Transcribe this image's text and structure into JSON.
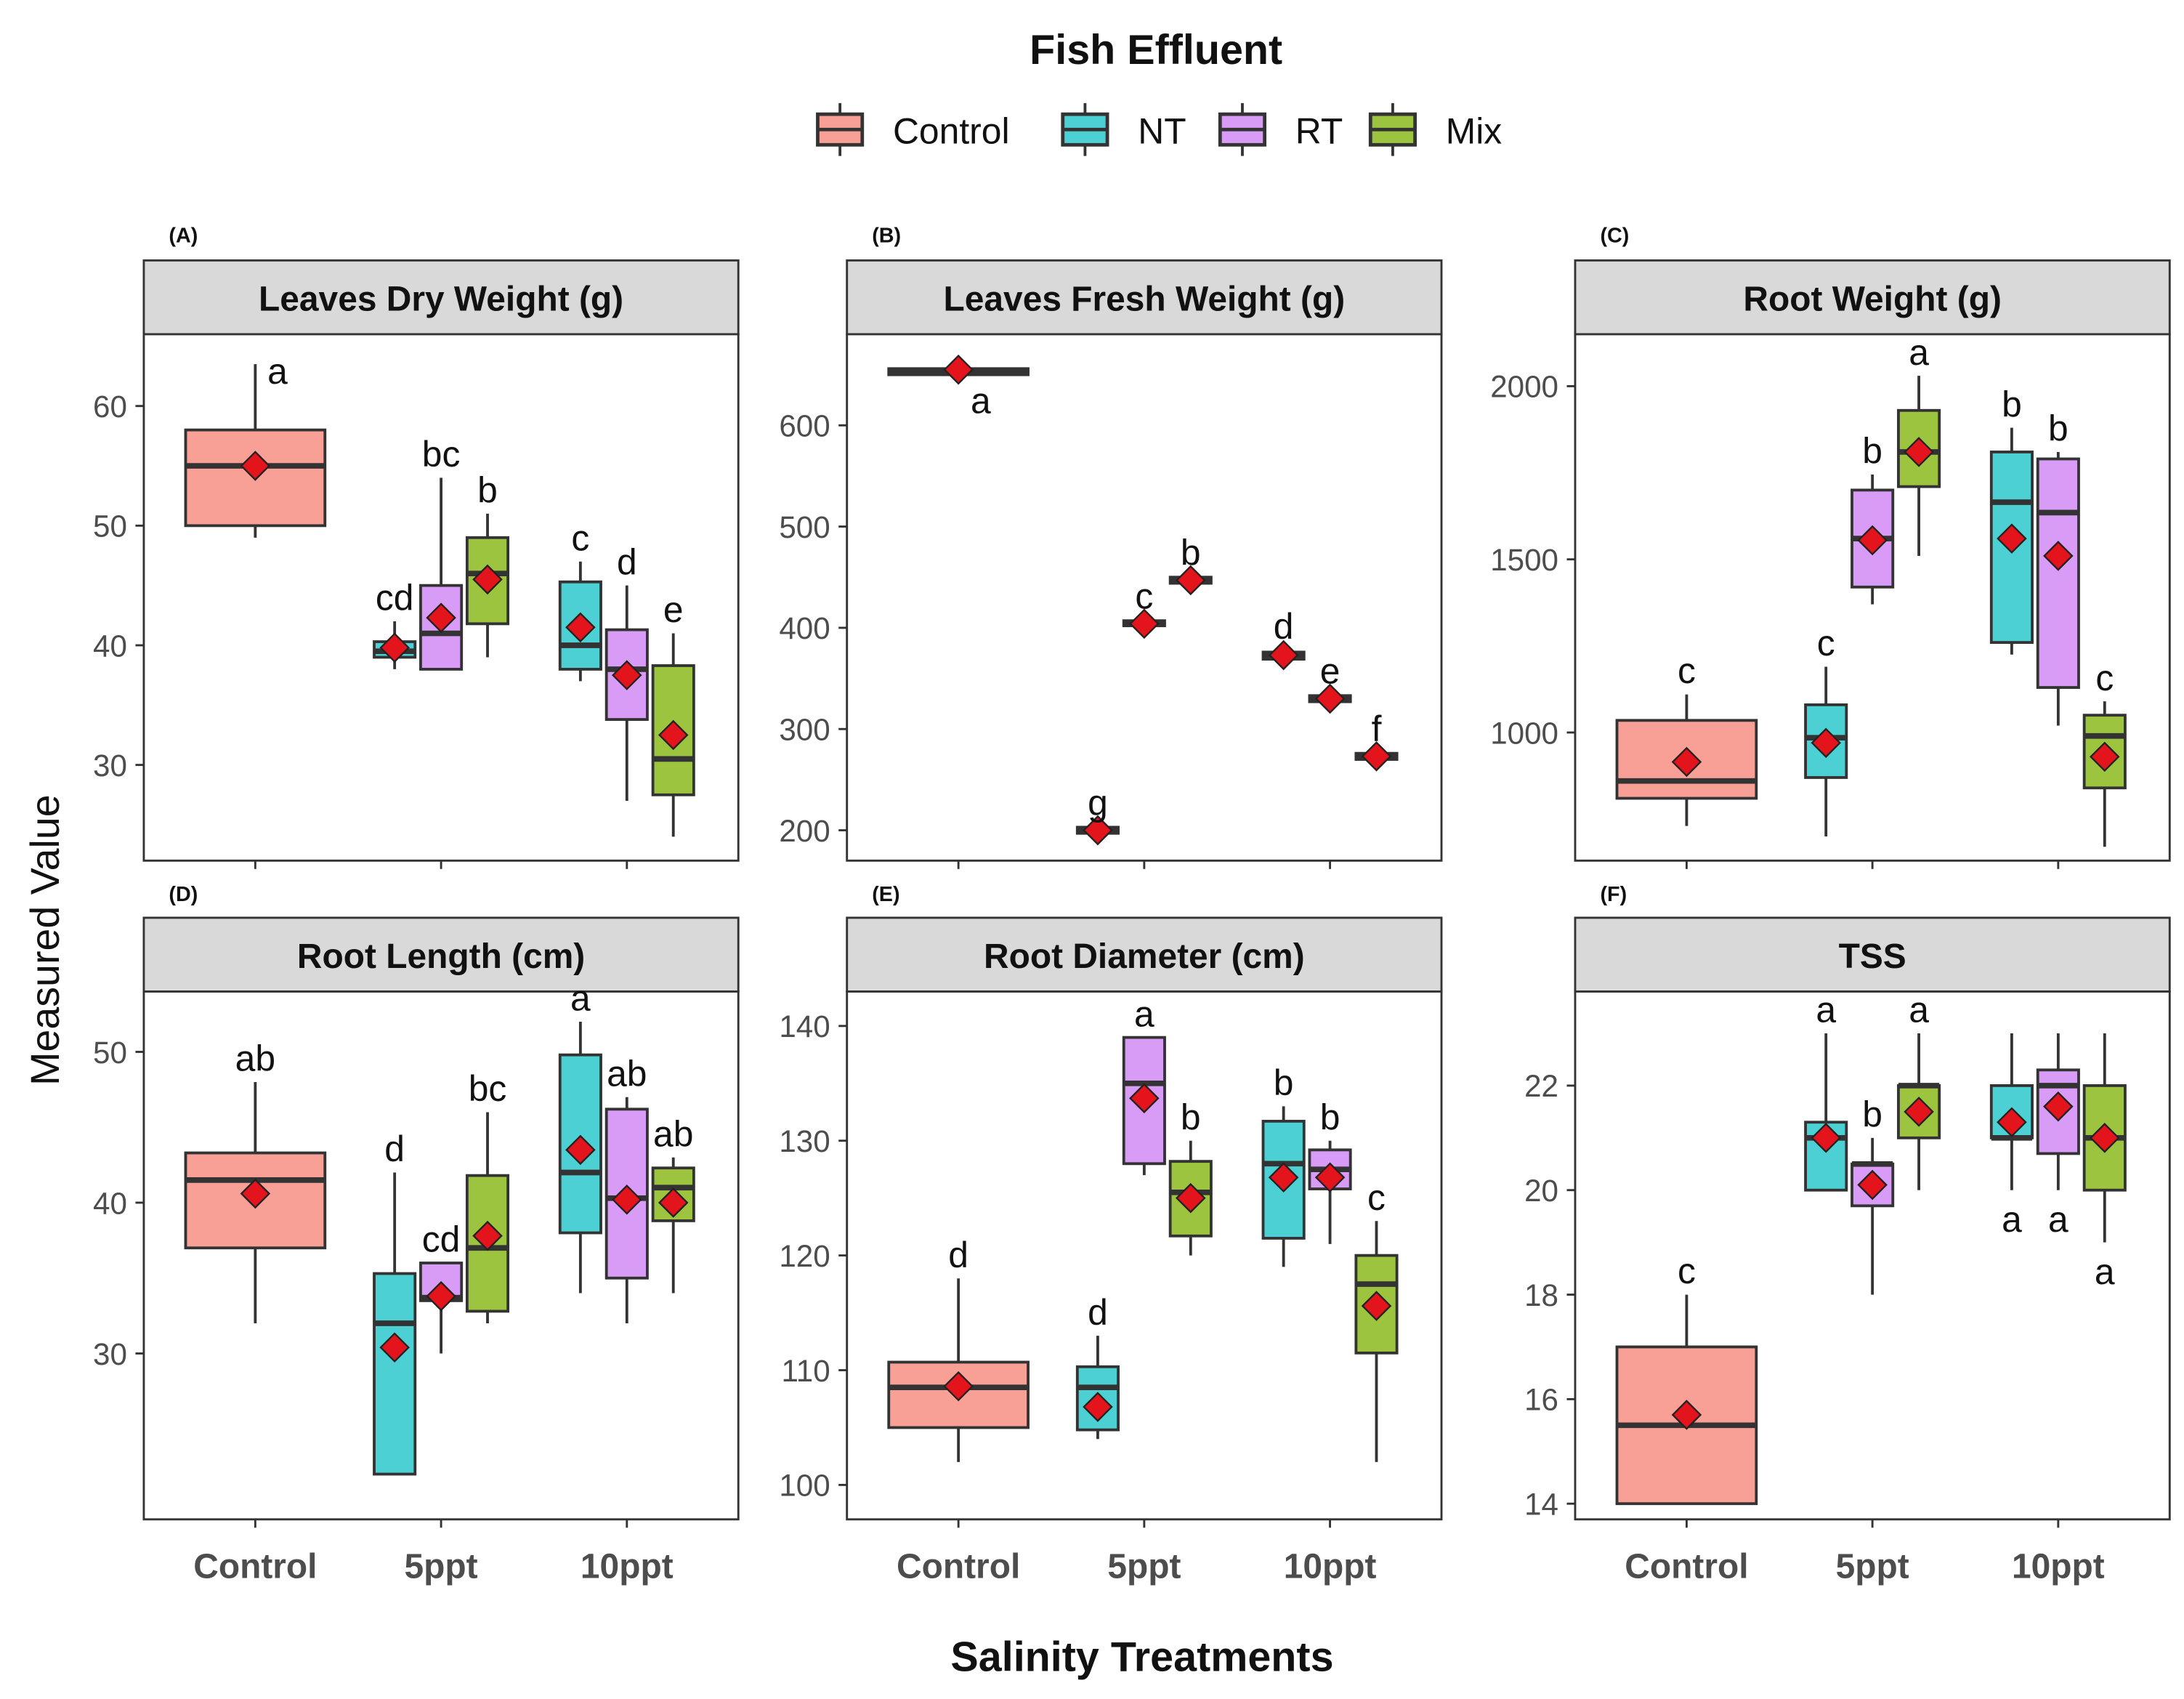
{
  "chart_data": {
    "type": "box",
    "title": "Fish Effluent",
    "xlabel": "Salinity Treatments",
    "ylabel": "Measured Value",
    "categories": [
      "Control",
      "5ppt",
      "10ppt"
    ],
    "legend": {
      "position": "top",
      "items": [
        {
          "name": "Control",
          "color": "#F8A096"
        },
        {
          "name": "NT",
          "color": "#4DD0D3"
        },
        {
          "name": "RT",
          "color": "#D89CF6"
        },
        {
          "name": "Mix",
          "color": "#9CC43E"
        }
      ]
    },
    "mean_marker_color": "#E3141B",
    "panels": [
      {
        "letter": "(A)",
        "title": "Leaves Dry Weight (g)",
        "ylim": [
          22,
          66
        ],
        "yticks": [
          "30",
          "40",
          "50",
          "60"
        ],
        "boxes": [
          {
            "group": "Control",
            "category": "Control",
            "lo": 49,
            "q1": 50,
            "median": 55,
            "q3": 58,
            "hi": 63.5,
            "mean": 55,
            "label": "a",
            "label_pos": "above"
          },
          {
            "group": "NT",
            "category": "5ppt",
            "lo": 38,
            "q1": 39,
            "median": 39.5,
            "q3": 40.3,
            "hi": 42,
            "mean": 39.8,
            "label": "cd",
            "label_pos": "above"
          },
          {
            "group": "RT",
            "category": "5ppt",
            "lo": 38,
            "q1": 38,
            "median": 41,
            "q3": 45,
            "hi": 54,
            "mean": 42.3,
            "label": "bc",
            "label_pos": "above"
          },
          {
            "group": "Mix",
            "category": "5ppt",
            "lo": 39,
            "q1": 41.8,
            "median": 46,
            "q3": 49,
            "hi": 51,
            "mean": 45.5,
            "label": "b",
            "label_pos": "above"
          },
          {
            "group": "NT",
            "category": "10ppt",
            "lo": 37,
            "q1": 38,
            "median": 40,
            "q3": 45.3,
            "hi": 47,
            "mean": 41.5,
            "label": "c",
            "label_pos": "above"
          },
          {
            "group": "RT",
            "category": "10ppt",
            "lo": 27,
            "q1": 33.8,
            "median": 38,
            "q3": 41.3,
            "hi": 45,
            "mean": 37.5,
            "label": "d",
            "label_pos": "above"
          },
          {
            "group": "Mix",
            "category": "10ppt",
            "lo": 24,
            "q1": 27.5,
            "median": 30.5,
            "q3": 38.3,
            "hi": 41,
            "mean": 32.5,
            "label": "e",
            "label_pos": "above"
          }
        ]
      },
      {
        "letter": "(B)",
        "title": "Leaves Fresh Weight (g)",
        "ylim": [
          170,
          690
        ],
        "yticks": [
          "200",
          "300",
          "400",
          "500",
          "600"
        ],
        "boxes": [
          {
            "group": "Control",
            "category": "Control",
            "lo": 648,
            "q1": 650,
            "median": 653,
            "q3": 656,
            "hi": 658,
            "mean": 655,
            "label": "a",
            "label_pos": "below"
          },
          {
            "group": "NT",
            "category": "5ppt",
            "lo": 196,
            "q1": 197,
            "median": 200,
            "q3": 203,
            "hi": 204,
            "mean": 200,
            "label": "g",
            "label_pos": "above"
          },
          {
            "group": "RT",
            "category": "5ppt",
            "lo": 401,
            "q1": 402,
            "median": 405,
            "q3": 407,
            "hi": 408,
            "mean": 404,
            "label": "c",
            "label_pos": "above"
          },
          {
            "group": "Mix",
            "category": "5ppt",
            "lo": 443,
            "q1": 444,
            "median": 447,
            "q3": 450,
            "hi": 451,
            "mean": 447,
            "label": "b",
            "label_pos": "above"
          },
          {
            "group": "NT",
            "category": "10ppt",
            "lo": 368,
            "q1": 369,
            "median": 373,
            "q3": 376,
            "hi": 378,
            "mean": 373,
            "label": "d",
            "label_pos": "above"
          },
          {
            "group": "RT",
            "category": "10ppt",
            "lo": 326,
            "q1": 327,
            "median": 330,
            "q3": 333,
            "hi": 334,
            "mean": 330,
            "label": "e",
            "label_pos": "above"
          },
          {
            "group": "Mix",
            "category": "10ppt",
            "lo": 269,
            "q1": 270,
            "median": 273,
            "q3": 276,
            "hi": 277,
            "mean": 273,
            "label": "f",
            "label_pos": "above"
          }
        ]
      },
      {
        "letter": "(C)",
        "title": "Root Weight (g)",
        "ylim": [
          630,
          2150
        ],
        "yticks": [
          "1000",
          "1500",
          "2000"
        ],
        "boxes": [
          {
            "group": "Control",
            "category": "Control",
            "lo": 730,
            "q1": 810,
            "median": 860,
            "q3": 1035,
            "hi": 1110,
            "mean": 915,
            "label": "c",
            "label_pos": "above"
          },
          {
            "group": "NT",
            "category": "5ppt",
            "lo": 700,
            "q1": 870,
            "median": 985,
            "q3": 1080,
            "hi": 1190,
            "mean": 970,
            "label": "c",
            "label_pos": "above"
          },
          {
            "group": "RT",
            "category": "5ppt",
            "lo": 1370,
            "q1": 1420,
            "median": 1560,
            "q3": 1700,
            "hi": 1745,
            "mean": 1555,
            "label": "b",
            "label_pos": "above"
          },
          {
            "group": "Mix",
            "category": "5ppt",
            "lo": 1510,
            "q1": 1710,
            "median": 1810,
            "q3": 1930,
            "hi": 2030,
            "mean": 1810,
            "label": "a",
            "label_pos": "above"
          },
          {
            "group": "NT",
            "category": "10ppt",
            "lo": 1225,
            "q1": 1260,
            "median": 1665,
            "q3": 1810,
            "hi": 1880,
            "mean": 1560,
            "label": "b",
            "label_pos": "above"
          },
          {
            "group": "RT",
            "category": "10ppt",
            "lo": 1020,
            "q1": 1130,
            "median": 1635,
            "q3": 1790,
            "hi": 1810,
            "mean": 1510,
            "label": "b",
            "label_pos": "above"
          },
          {
            "group": "Mix",
            "category": "10ppt",
            "lo": 670,
            "q1": 840,
            "median": 990,
            "q3": 1050,
            "hi": 1090,
            "mean": 930,
            "label": "c",
            "label_pos": "above"
          }
        ]
      },
      {
        "letter": "(D)",
        "title": "Root Length (cm)",
        "ylim": [
          19,
          54
        ],
        "yticks": [
          "30",
          "40",
          "50"
        ],
        "boxes": [
          {
            "group": "Control",
            "category": "Control",
            "lo": 32,
            "q1": 37,
            "median": 41.5,
            "q3": 43.3,
            "hi": 48,
            "mean": 40.6,
            "label": "ab",
            "label_pos": "above"
          },
          {
            "group": "NT",
            "category": "5ppt",
            "lo": 22,
            "q1": 22,
            "median": 32,
            "q3": 35.3,
            "hi": 42,
            "mean": 30.4,
            "label": "d",
            "label_pos": "above"
          },
          {
            "group": "RT",
            "category": "5ppt",
            "lo": 30,
            "q1": 33.5,
            "median": 33.7,
            "q3": 36,
            "hi": 36,
            "mean": 33.8,
            "label": "cd",
            "label_pos": "above"
          },
          {
            "group": "Mix",
            "category": "5ppt",
            "lo": 32,
            "q1": 32.8,
            "median": 37,
            "q3": 41.8,
            "hi": 46,
            "mean": 37.8,
            "label": "bc",
            "label_pos": "above"
          },
          {
            "group": "NT",
            "category": "10ppt",
            "lo": 34,
            "q1": 38,
            "median": 42,
            "q3": 49.8,
            "hi": 52,
            "mean": 43.5,
            "label": "a",
            "label_pos": "above"
          },
          {
            "group": "RT",
            "category": "10ppt",
            "lo": 32,
            "q1": 35,
            "median": 40.3,
            "q3": 46.2,
            "hi": 47,
            "mean": 40.2,
            "label": "ab",
            "label_pos": "above"
          },
          {
            "group": "Mix",
            "category": "10ppt",
            "lo": 34,
            "q1": 38.8,
            "median": 41,
            "q3": 42.3,
            "hi": 43,
            "mean": 40,
            "label": "ab",
            "label_pos": "above"
          }
        ]
      },
      {
        "letter": "(E)",
        "title": "Root Diameter (cm)",
        "ylim": [
          97,
          143
        ],
        "yticks": [
          "100",
          "110",
          "120",
          "130",
          "140"
        ],
        "boxes": [
          {
            "group": "Control",
            "category": "Control",
            "lo": 102,
            "q1": 105,
            "median": 108.5,
            "q3": 110.7,
            "hi": 118,
            "mean": 108.6,
            "label": "d",
            "label_pos": "above"
          },
          {
            "group": "NT",
            "category": "5ppt",
            "lo": 104,
            "q1": 104.8,
            "median": 108.5,
            "q3": 110.3,
            "hi": 113,
            "mean": 106.8,
            "label": "d",
            "label_pos": "above"
          },
          {
            "group": "RT",
            "category": "5ppt",
            "lo": 127,
            "q1": 128,
            "median": 135,
            "q3": 139,
            "hi": 139,
            "mean": 133.7,
            "label": "a",
            "label_pos": "above"
          },
          {
            "group": "Mix",
            "category": "5ppt",
            "lo": 120,
            "q1": 121.7,
            "median": 125.5,
            "q3": 128.2,
            "hi": 130,
            "mean": 125,
            "label": "b",
            "label_pos": "above"
          },
          {
            "group": "NT",
            "category": "10ppt",
            "lo": 119,
            "q1": 121.5,
            "median": 128,
            "q3": 131.7,
            "hi": 133,
            "mean": 126.8,
            "label": "b",
            "label_pos": "above"
          },
          {
            "group": "RT",
            "category": "10ppt",
            "lo": 121,
            "q1": 125.8,
            "median": 127.5,
            "q3": 129.2,
            "hi": 130,
            "mean": 126.8,
            "label": "b",
            "label_pos": "above"
          },
          {
            "group": "Mix",
            "category": "10ppt",
            "lo": 102,
            "q1": 111.5,
            "median": 117.5,
            "q3": 120,
            "hi": 123,
            "mean": 115.6,
            "label": "c",
            "label_pos": "above"
          }
        ]
      },
      {
        "letter": "(F)",
        "title": "TSS",
        "ylim": [
          13.7,
          23.8
        ],
        "yticks": [
          "14",
          "16",
          "18",
          "20",
          "22"
        ],
        "boxes": [
          {
            "group": "Control",
            "category": "Control",
            "lo": 14,
            "q1": 14,
            "median": 15.5,
            "q3": 17,
            "hi": 18,
            "mean": 15.7,
            "label": "c",
            "label_pos": "above"
          },
          {
            "group": "NT",
            "category": "5ppt",
            "lo": 20,
            "q1": 20,
            "median": 21,
            "q3": 21.3,
            "hi": 23,
            "mean": 21,
            "label": "a",
            "label_pos": "above"
          },
          {
            "group": "RT",
            "category": "5ppt",
            "lo": 18,
            "q1": 19.7,
            "median": 20.5,
            "q3": 20.5,
            "hi": 21,
            "mean": 20.1,
            "label": "b",
            "label_pos": "above"
          },
          {
            "group": "Mix",
            "category": "5ppt",
            "lo": 20,
            "q1": 21,
            "median": 22,
            "q3": 22,
            "hi": 23,
            "mean": 21.5,
            "label": "a",
            "label_pos": "above"
          },
          {
            "group": "NT",
            "category": "10ppt",
            "lo": 20,
            "q1": 21,
            "median": 21,
            "q3": 22,
            "hi": 23,
            "mean": 21.3,
            "label": "a",
            "label_pos": "below"
          },
          {
            "group": "RT",
            "category": "10ppt",
            "lo": 20,
            "q1": 20.7,
            "median": 22,
            "q3": 22.3,
            "hi": 23,
            "mean": 21.6,
            "label": "a",
            "label_pos": "below"
          },
          {
            "group": "Mix",
            "category": "10ppt",
            "lo": 19,
            "q1": 20,
            "median": 21,
            "q3": 22,
            "hi": 23,
            "mean": 21,
            "label": "a",
            "label_pos": "below"
          }
        ]
      }
    ]
  }
}
